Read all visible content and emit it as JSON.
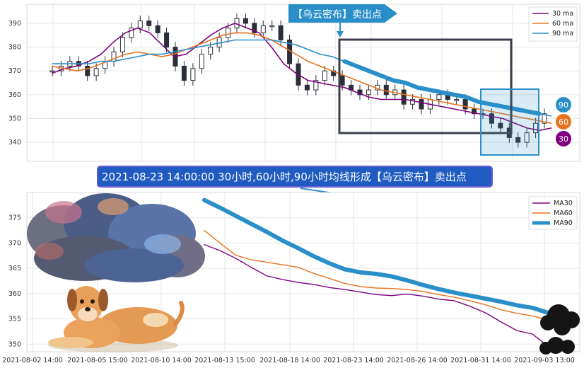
{
  "banner": "【乌云密布】卖出点",
  "caption": "2021-08-23 14:00:00 30小时,60小时,90小时均线形成【乌云密布】卖出点",
  "badges": [
    "90",
    "60",
    "30"
  ],
  "colors": {
    "ma30": "#800080",
    "ma60": "#e8731f",
    "ma90": "#2a8fc9",
    "candle": "#2b2f3a",
    "signal_box": "#3a3f4a",
    "highlight_box": "#2a8fc9",
    "banner": "#2a8fc9",
    "caption_bg": "#1f5bc0"
  },
  "chart_data": [
    {
      "type": "line",
      "panel": "top",
      "title": "",
      "xlabel": "",
      "ylabel": "",
      "ylim": [
        332,
        398
      ],
      "yticks": [
        340,
        350,
        360,
        370,
        380,
        390
      ],
      "grid": true,
      "legend": "top-right",
      "legend_entries": [
        "30 ma",
        "60 ma",
        "90 ma"
      ],
      "candles_close_approx": [
        370,
        372,
        374,
        372,
        368,
        371,
        374,
        378,
        384,
        388,
        391,
        389,
        386,
        380,
        372,
        366,
        371,
        377,
        380,
        384,
        388,
        392,
        390,
        386,
        389,
        389,
        383,
        373,
        364,
        362,
        366,
        370,
        368,
        364,
        362,
        360,
        362,
        364,
        360,
        362,
        356,
        358,
        354,
        358,
        360,
        358,
        358,
        354,
        352,
        352,
        348,
        346,
        342,
        340,
        344,
        348,
        352
      ],
      "series": [
        {
          "name": "30 ma",
          "values": [
            369,
            371,
            372,
            374,
            377,
            382,
            386,
            388,
            386,
            381,
            376,
            377,
            381,
            385,
            388,
            390,
            388,
            386,
            380,
            373,
            369,
            366,
            365,
            364,
            363,
            361,
            359,
            358,
            358,
            358,
            357,
            356,
            355,
            354,
            353,
            352,
            351,
            350,
            348,
            346,
            345,
            346
          ]
        },
        {
          "name": "60 ma",
          "values": [
            372,
            371,
            370,
            371,
            373,
            375,
            377,
            378,
            377,
            376,
            377,
            379,
            381,
            383,
            385,
            386,
            386,
            385,
            383,
            380,
            377,
            374,
            372,
            370,
            368,
            366,
            364,
            362,
            361,
            360,
            359,
            358,
            357,
            356,
            355,
            354,
            353,
            352,
            351,
            350,
            349,
            348
          ]
        },
        {
          "name": "90 ma",
          "values": [
            373,
            373,
            373,
            373,
            374,
            374,
            375,
            376,
            377,
            377,
            378,
            379,
            380,
            381,
            382,
            383,
            383,
            383,
            383,
            382,
            381,
            379,
            377,
            376,
            374,
            372,
            370,
            368,
            366,
            365,
            363,
            362,
            361,
            360,
            359,
            357,
            356,
            355,
            354,
            353,
            352,
            351
          ]
        }
      ]
    },
    {
      "type": "line",
      "panel": "bottom",
      "title": "",
      "xlabel": "",
      "ylabel": "",
      "ylim": [
        348.5,
        380
      ],
      "yticks": [
        350,
        355,
        360,
        365,
        370,
        375
      ],
      "xticks": [
        "2021-08-02 14:00",
        "2021-08-05 15:00",
        "2021-08-10 14:00",
        "2021-08-13 15:00",
        "2021-08-18 14:00",
        "2021-08-23 14:00",
        "2021-08-26 14:00",
        "2021-08-31 14:00",
        "2021-09-03 13:00"
      ],
      "grid": true,
      "legend": "top-right",
      "series": [
        {
          "name": "MA30",
          "values": [
            369.7,
            368.5,
            367.0,
            365.2,
            363.5,
            362.8,
            362.2,
            361.8,
            361.2,
            360.8,
            360.3,
            359.8,
            359.6,
            359.9,
            359.5,
            358.9,
            358.6,
            357.5,
            356.2,
            354.4,
            352.7,
            352.0,
            349.6
          ]
        },
        {
          "name": "MA60",
          "values": [
            372.5,
            370.0,
            367.6,
            366.7,
            366.2,
            365.7,
            365.2,
            364.0,
            363.0,
            362.0,
            361.4,
            361.1,
            361.0,
            360.8,
            360.4,
            359.8,
            359.3,
            358.6,
            357.8,
            356.8,
            356.1,
            355.6,
            354.8
          ]
        },
        {
          "name": "MA90",
          "values": [
            378.5,
            377.0,
            375.4,
            373.8,
            372.2,
            370.5,
            369.0,
            367.4,
            366.0,
            364.8,
            364.2,
            363.9,
            363.4,
            362.6,
            361.7,
            360.9,
            360.2,
            359.6,
            359.0,
            358.4,
            357.7,
            357.2,
            356.2
          ]
        }
      ]
    }
  ]
}
